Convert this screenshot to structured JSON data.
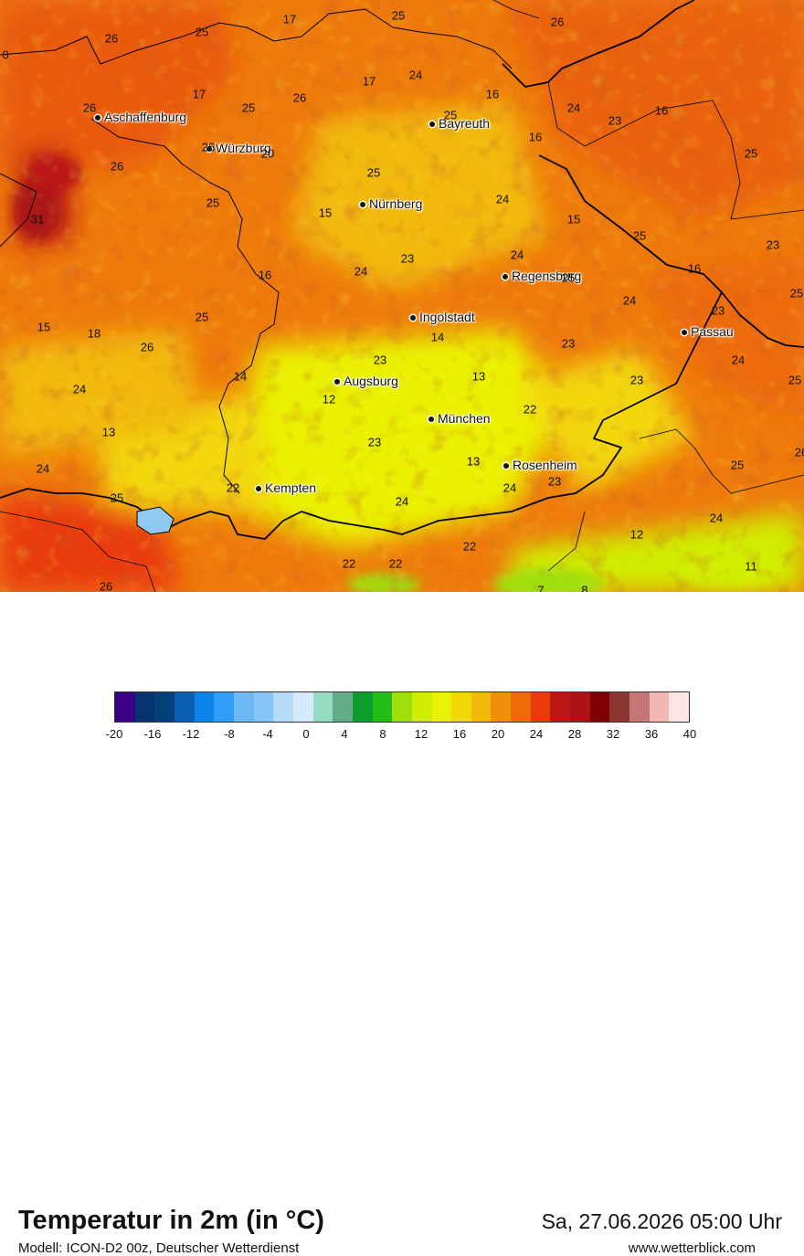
{
  "map": {
    "cities": [
      {
        "name": "Aschaffenburg"
      },
      {
        "name": "Würzburg"
      },
      {
        "name": "Bayreuth"
      },
      {
        "name": "Nürnberg"
      },
      {
        "name": "Regensburg"
      },
      {
        "name": "Ingolstadt"
      },
      {
        "name": "Passau"
      },
      {
        "name": "Augsburg"
      },
      {
        "name": "München"
      },
      {
        "name": "Rosenheim"
      },
      {
        "name": "Kempten"
      }
    ],
    "values": [
      "17",
      "25",
      "26",
      "25",
      "26",
      "0",
      "17",
      "24",
      "26",
      "16",
      "24",
      "23",
      "16",
      "25",
      "26",
      "17",
      "25",
      "26",
      "25",
      "16",
      "20",
      "26",
      "25",
      "25",
      "24",
      "25",
      "31",
      "15",
      "15",
      "24",
      "23",
      "16",
      "25",
      "16",
      "25",
      "24",
      "23",
      "24",
      "23",
      "18",
      "15",
      "26",
      "25",
      "24",
      "14",
      "23",
      "24",
      "14",
      "12",
      "13",
      "13",
      "22",
      "23",
      "23",
      "25",
      "23",
      "13",
      "24",
      "22",
      "25",
      "24",
      "23",
      "12",
      "24",
      "22",
      "22",
      "22",
      "11",
      "26",
      "7",
      "8",
      "24",
      "26",
      "25"
    ]
  },
  "footer": {
    "title": "Temperatur in 2m (in °C)",
    "subtitle": "Modell: ICON-D2 00z, Deutscher Wetterdienst",
    "datetime": "Sa, 27.06.2026 05:00 Uhr",
    "website": "www.wetterblick.com"
  },
  "legend": {
    "colors": [
      "#3b0087",
      "#06326e",
      "#043f7a",
      "#0a5fb4",
      "#0b83e8",
      "#2f9cf5",
      "#6fb8f6",
      "#88c4f7",
      "#b4dbfa",
      "#d7eafc",
      "#95dcc0",
      "#63ad8c",
      "#0c9e2f",
      "#21bf15",
      "#a0de0e",
      "#d0ee03",
      "#eaf205",
      "#f2d709",
      "#f1ba0a",
      "#f08f0a",
      "#ed6a0b",
      "#e93a0b",
      "#bb1714",
      "#ab1316",
      "#7e0000",
      "#8c3632",
      "#c57775",
      "#f2b6b3",
      "#fde5e5"
    ],
    "ticks": [
      "-20",
      "-16",
      "-12",
      "-8",
      "-4",
      "0",
      "4",
      "8",
      "12",
      "16",
      "20",
      "24",
      "28",
      "32",
      "36",
      "40"
    ]
  }
}
